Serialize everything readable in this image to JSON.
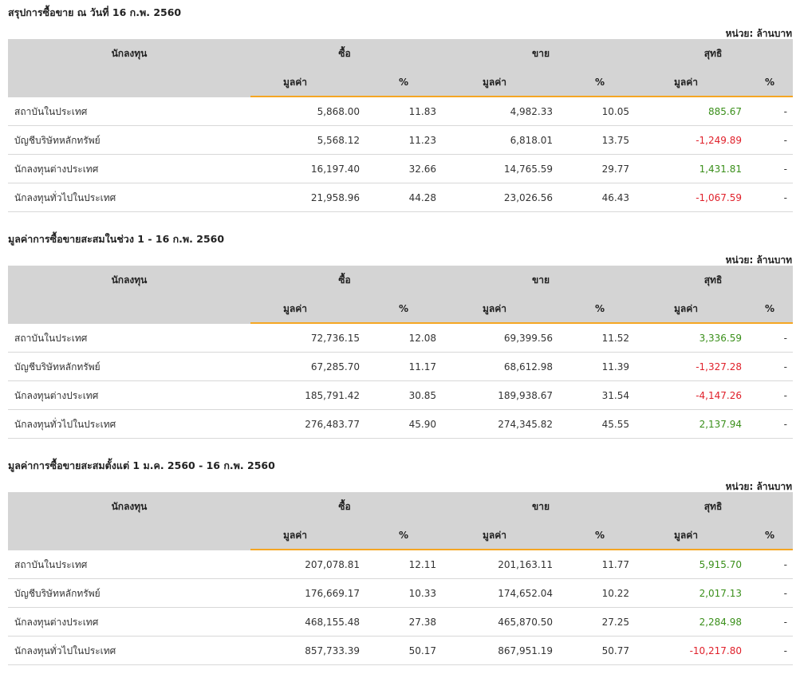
{
  "unit_label": "หน่วย: ล้านบาท",
  "headers": {
    "investor": "นักลงทุน",
    "buy": "ซื้อ",
    "sell": "ขาย",
    "net": "สุทธิ",
    "value": "มูลค่า",
    "percent": "%"
  },
  "sections": [
    {
      "title": "สรุปการซื้อขาย ณ วันที่ 16 ก.พ. 2560",
      "rows": [
        {
          "investor": "สถาบันในประเทศ",
          "buy_value": "5,868.00",
          "buy_pct": "11.83",
          "sell_value": "4,982.33",
          "sell_pct": "10.05",
          "net_value": "885.67",
          "net_sign": "pos",
          "net_pct": "-"
        },
        {
          "investor": "บัญชีบริษัทหลักทรัพย์",
          "buy_value": "5,568.12",
          "buy_pct": "11.23",
          "sell_value": "6,818.01",
          "sell_pct": "13.75",
          "net_value": "-1,249.89",
          "net_sign": "neg",
          "net_pct": "-"
        },
        {
          "investor": "นักลงทุนต่างประเทศ",
          "buy_value": "16,197.40",
          "buy_pct": "32.66",
          "sell_value": "14,765.59",
          "sell_pct": "29.77",
          "net_value": "1,431.81",
          "net_sign": "pos",
          "net_pct": "-"
        },
        {
          "investor": "นักลงทุนทั่วไปในประเทศ",
          "buy_value": "21,958.96",
          "buy_pct": "44.28",
          "sell_value": "23,026.56",
          "sell_pct": "46.43",
          "net_value": "-1,067.59",
          "net_sign": "neg",
          "net_pct": "-"
        }
      ]
    },
    {
      "title": "มูลค่าการซื้อขายสะสมในช่วง 1 - 16 ก.พ. 2560",
      "rows": [
        {
          "investor": "สถาบันในประเทศ",
          "buy_value": "72,736.15",
          "buy_pct": "12.08",
          "sell_value": "69,399.56",
          "sell_pct": "11.52",
          "net_value": "3,336.59",
          "net_sign": "pos",
          "net_pct": "-"
        },
        {
          "investor": "บัญชีบริษัทหลักทรัพย์",
          "buy_value": "67,285.70",
          "buy_pct": "11.17",
          "sell_value": "68,612.98",
          "sell_pct": "11.39",
          "net_value": "-1,327.28",
          "net_sign": "neg",
          "net_pct": "-"
        },
        {
          "investor": "นักลงทุนต่างประเทศ",
          "buy_value": "185,791.42",
          "buy_pct": "30.85",
          "sell_value": "189,938.67",
          "sell_pct": "31.54",
          "net_value": "-4,147.26",
          "net_sign": "neg",
          "net_pct": "-"
        },
        {
          "investor": "นักลงทุนทั่วไปในประเทศ",
          "buy_value": "276,483.77",
          "buy_pct": "45.90",
          "sell_value": "274,345.82",
          "sell_pct": "45.55",
          "net_value": "2,137.94",
          "net_sign": "pos",
          "net_pct": "-"
        }
      ]
    },
    {
      "title": "มูลค่าการซื้อขายสะสมตั้งแต่ 1 ม.ค. 2560 - 16 ก.พ. 2560",
      "rows": [
        {
          "investor": "สถาบันในประเทศ",
          "buy_value": "207,078.81",
          "buy_pct": "12.11",
          "sell_value": "201,163.11",
          "sell_pct": "11.77",
          "net_value": "5,915.70",
          "net_sign": "pos",
          "net_pct": "-"
        },
        {
          "investor": "บัญชีบริษัทหลักทรัพย์",
          "buy_value": "176,669.17",
          "buy_pct": "10.33",
          "sell_value": "174,652.04",
          "sell_pct": "10.22",
          "net_value": "2,017.13",
          "net_sign": "pos",
          "net_pct": "-"
        },
        {
          "investor": "นักลงทุนต่างประเทศ",
          "buy_value": "468,155.48",
          "buy_pct": "27.38",
          "sell_value": "465,870.50",
          "sell_pct": "27.25",
          "net_value": "2,284.98",
          "net_sign": "pos",
          "net_pct": "-"
        },
        {
          "investor": "นักลงทุนทั่วไปในประเทศ",
          "buy_value": "857,733.39",
          "buy_pct": "50.17",
          "sell_value": "867,951.19",
          "sell_pct": "50.77",
          "net_value": "-10,217.80",
          "net_sign": "neg",
          "net_pct": "-"
        }
      ]
    }
  ],
  "colors": {
    "header_bg": "#d4d4d4",
    "accent": "#f5a623",
    "positive": "#3a8f1a",
    "negative": "#e0212b"
  }
}
